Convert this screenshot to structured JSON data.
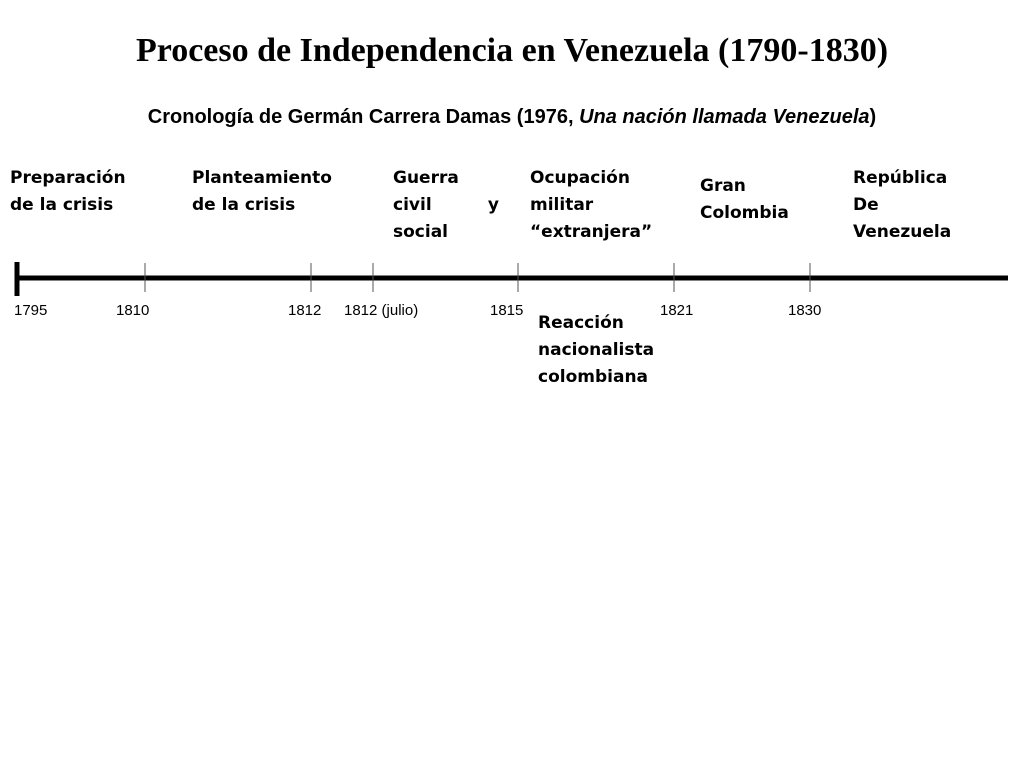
{
  "title": "Proceso de Independencia en Venezuela (1790-1830)",
  "subtitle": {
    "prefix": "Cronología de Germán Carrera Damas (1976, ",
    "book": "Una nación llamada Venezuela",
    "suffix": ")"
  },
  "periods": [
    {
      "id": "preparacion",
      "lines": [
        "Preparación",
        "de la crisis"
      ]
    },
    {
      "id": "planteamiento",
      "lines": [
        "Planteamiento",
        "de la crisis"
      ]
    },
    {
      "id": "guerra",
      "lines": [
        "Guerra",
        "civil y",
        "social"
      ]
    },
    {
      "id": "ocupacion",
      "lines": [
        "Ocupación",
        "militar",
        "“extranjera”"
      ]
    },
    {
      "id": "gran-colombia",
      "lines": [
        "Gran",
        "Colombia"
      ]
    },
    {
      "id": "republica",
      "lines": [
        "República",
        "De",
        "Venezuela"
      ]
    },
    {
      "id": "reaccion",
      "lines": [
        "Reacción",
        "nacionalista",
        "colombiana"
      ]
    }
  ],
  "years": [
    "1795",
    "1810",
    "1812",
    "1812 (julio)",
    "1815",
    "1821",
    "1830"
  ]
}
